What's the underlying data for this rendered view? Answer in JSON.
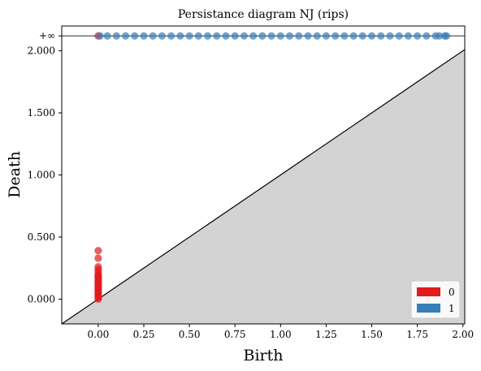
{
  "chart_data": {
    "type": "scatter",
    "title": "Persistance diagram NJ (rips)",
    "xlabel": "Birth",
    "ylabel": "Death",
    "xlim": [
      -0.2,
      2.01
    ],
    "ylim": [
      -0.2,
      2.2
    ],
    "x_ticks": [
      0.0,
      0.25,
      0.5,
      0.75,
      1.0,
      1.25,
      1.5,
      1.75,
      2.0
    ],
    "x_tick_labels": [
      "0.00",
      "0.25",
      "0.50",
      "0.75",
      "1.00",
      "1.25",
      "1.50",
      "1.75",
      "2.00"
    ],
    "y_ticks": [
      0.0,
      0.5,
      1.0,
      1.5,
      2.0
    ],
    "y_tick_labels": [
      "0.000",
      "0.500",
      "1.000",
      "1.500",
      "2.000"
    ],
    "infinity_label": "+∞",
    "infinity_value": 2.12,
    "diagonal": true,
    "grid": false,
    "legend_position": "bottom-right",
    "series": [
      {
        "name": "0",
        "color": "#e41a1c",
        "points": [
          {
            "x": 0.0,
            "y": 0.0
          },
          {
            "x": 0.0,
            "y": 0.01
          },
          {
            "x": 0.0,
            "y": 0.02
          },
          {
            "x": 0.0,
            "y": 0.03
          },
          {
            "x": 0.0,
            "y": 0.04
          },
          {
            "x": 0.0,
            "y": 0.05
          },
          {
            "x": 0.0,
            "y": 0.06
          },
          {
            "x": 0.0,
            "y": 0.07
          },
          {
            "x": 0.0,
            "y": 0.08
          },
          {
            "x": 0.0,
            "y": 0.09
          },
          {
            "x": 0.0,
            "y": 0.1
          },
          {
            "x": 0.0,
            "y": 0.11
          },
          {
            "x": 0.0,
            "y": 0.12
          },
          {
            "x": 0.0,
            "y": 0.13
          },
          {
            "x": 0.0,
            "y": 0.14
          },
          {
            "x": 0.0,
            "y": 0.15
          },
          {
            "x": 0.0,
            "y": 0.16
          },
          {
            "x": 0.0,
            "y": 0.17
          },
          {
            "x": 0.0,
            "y": 0.18
          },
          {
            "x": 0.0,
            "y": 0.19
          },
          {
            "x": 0.0,
            "y": 0.2
          },
          {
            "x": 0.0,
            "y": 0.22
          },
          {
            "x": 0.0,
            "y": 0.24
          },
          {
            "x": 0.0,
            "y": 0.26
          },
          {
            "x": 0.0,
            "y": 0.33
          },
          {
            "x": 0.0,
            "y": 0.39
          },
          {
            "x": 0.0,
            "y": "inf"
          }
        ]
      },
      {
        "name": "1",
        "color": "#377eb8",
        "points_at_infinity_births": [
          0.01,
          0.05,
          0.1,
          0.15,
          0.2,
          0.25,
          0.3,
          0.35,
          0.4,
          0.45,
          0.5,
          0.55,
          0.6,
          0.65,
          0.7,
          0.75,
          0.8,
          0.85,
          0.9,
          0.95,
          1.0,
          1.05,
          1.1,
          1.15,
          1.2,
          1.25,
          1.3,
          1.35,
          1.4,
          1.45,
          1.5,
          1.55,
          1.6,
          1.65,
          1.7,
          1.75,
          1.8,
          1.85,
          1.87,
          1.9,
          1.91
        ]
      }
    ]
  }
}
